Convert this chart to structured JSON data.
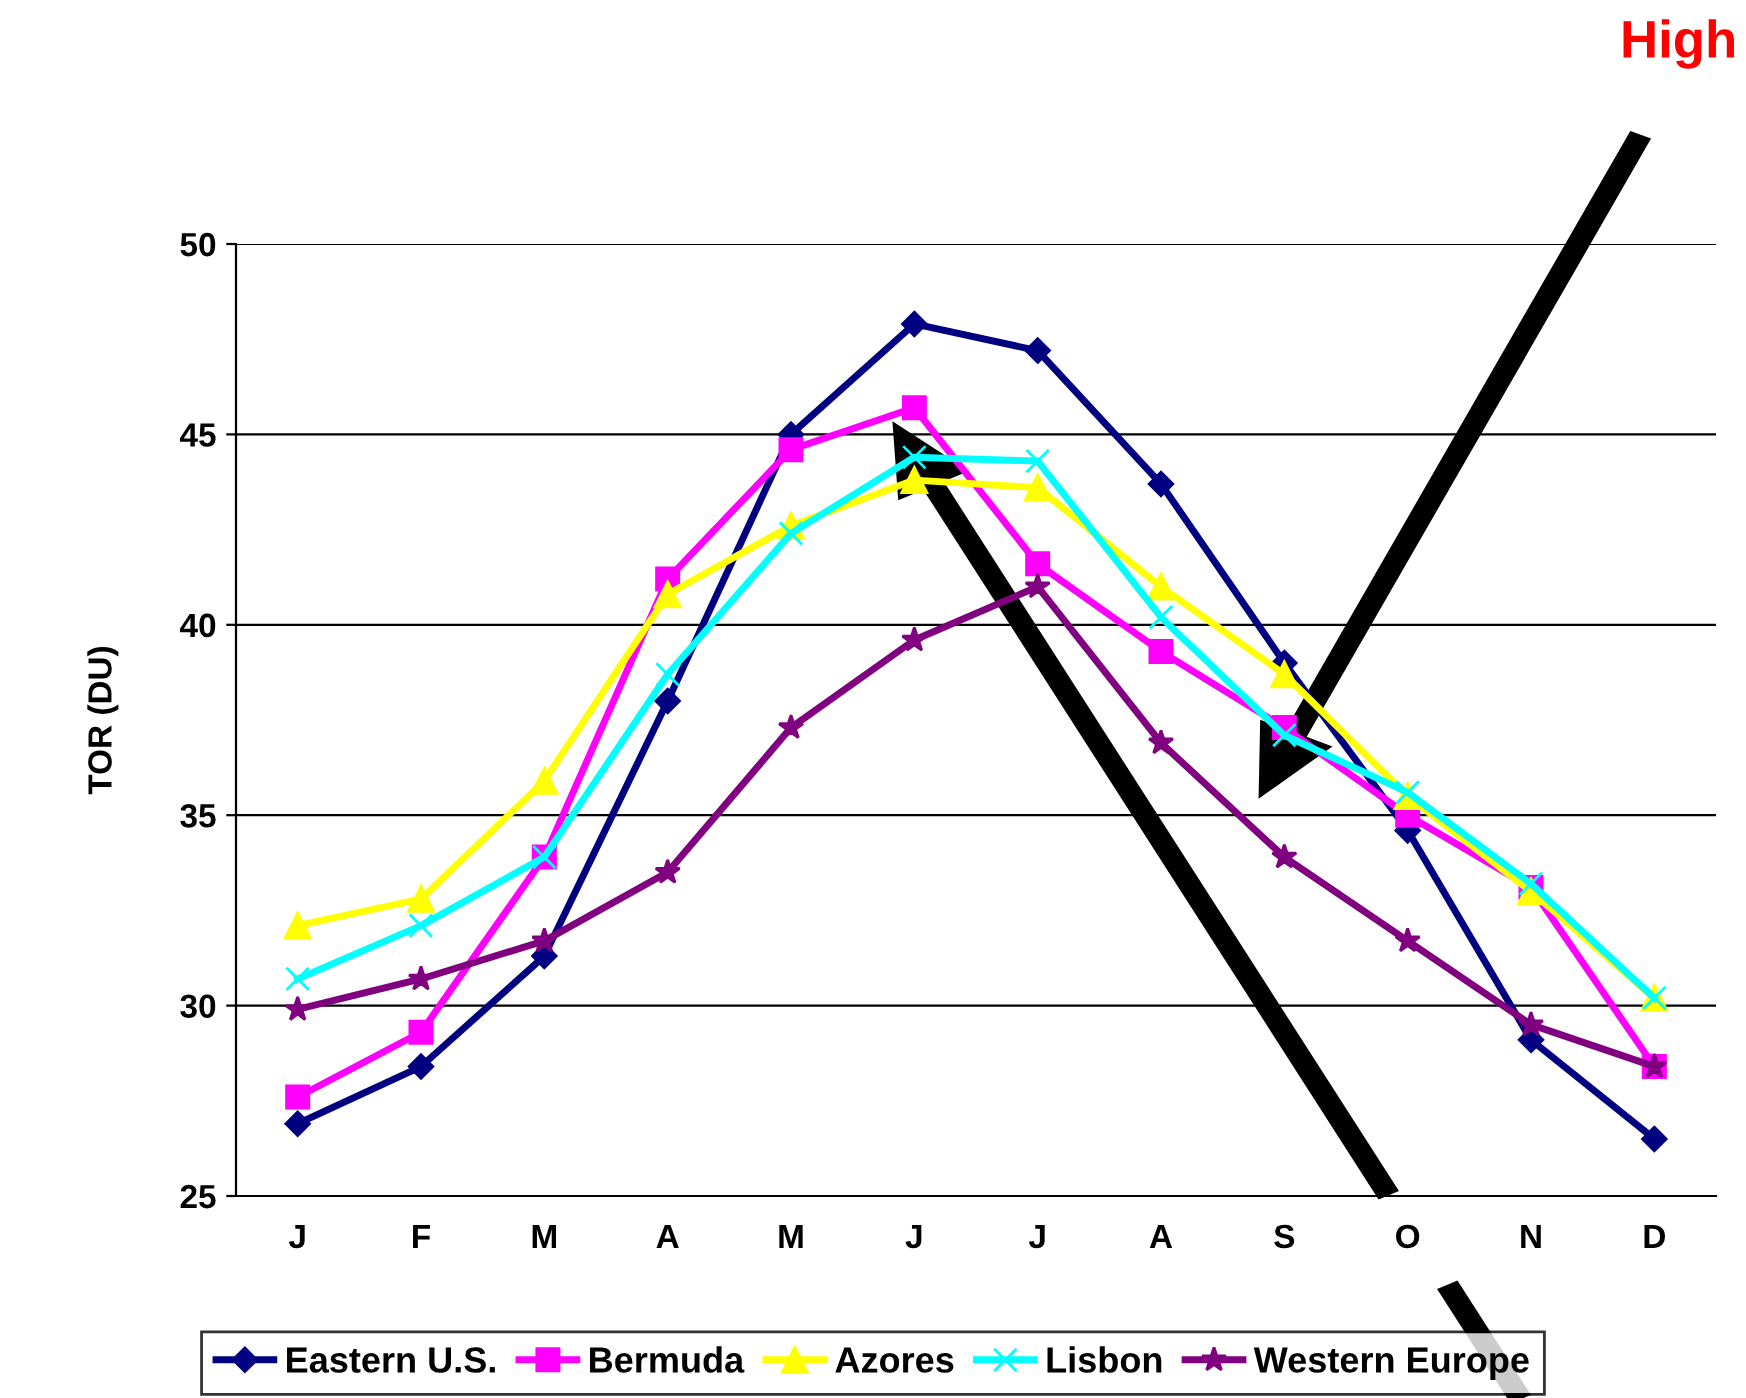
{
  "chart_data": {
    "type": "line",
    "ylabel": "TOR (DU)",
    "categories": [
      "J",
      "F",
      "M",
      "A",
      "M",
      "J",
      "J",
      "A",
      "S",
      "O",
      "N",
      "D"
    ],
    "ylim": [
      25,
      50
    ],
    "yticks": [
      25,
      30,
      35,
      40,
      45,
      50
    ],
    "grid": "y",
    "legend": "bottom",
    "line_style": "solid",
    "annotations": [
      "High"
    ],
    "series": [
      {
        "name": "Eastern U.S.",
        "color": "#000080",
        "marker": "diamond",
        "values": [
          26.9,
          28.4,
          31.3,
          38.0,
          45.0,
          47.9,
          47.2,
          43.7,
          39.0,
          34.6,
          29.1,
          26.5
        ]
      },
      {
        "name": "Bermuda",
        "color": "#ff00ff",
        "marker": "square",
        "values": [
          27.6,
          29.3,
          33.9,
          41.2,
          44.6,
          45.7,
          41.6,
          39.3,
          37.3,
          35.0,
          33.1,
          28.4
        ]
      },
      {
        "name": "Azores",
        "color": "#ffff00",
        "marker": "triangle",
        "values": [
          32.1,
          32.8,
          35.9,
          40.8,
          42.6,
          43.8,
          43.6,
          41.0,
          38.7,
          35.5,
          33.0,
          30.2
        ]
      },
      {
        "name": "Lisbon",
        "color": "#00ffff",
        "marker": "cross",
        "values": [
          30.7,
          32.1,
          33.9,
          38.7,
          42.4,
          44.4,
          44.3,
          40.2,
          37.1,
          35.6,
          33.2,
          30.2
        ]
      },
      {
        "name": "Western Europe",
        "color": "#800080",
        "marker": "star",
        "values": [
          29.9,
          30.7,
          31.7,
          33.5,
          37.3,
          39.6,
          41.0,
          36.9,
          33.9,
          31.7,
          29.5,
          28.4
        ]
      }
    ]
  }
}
